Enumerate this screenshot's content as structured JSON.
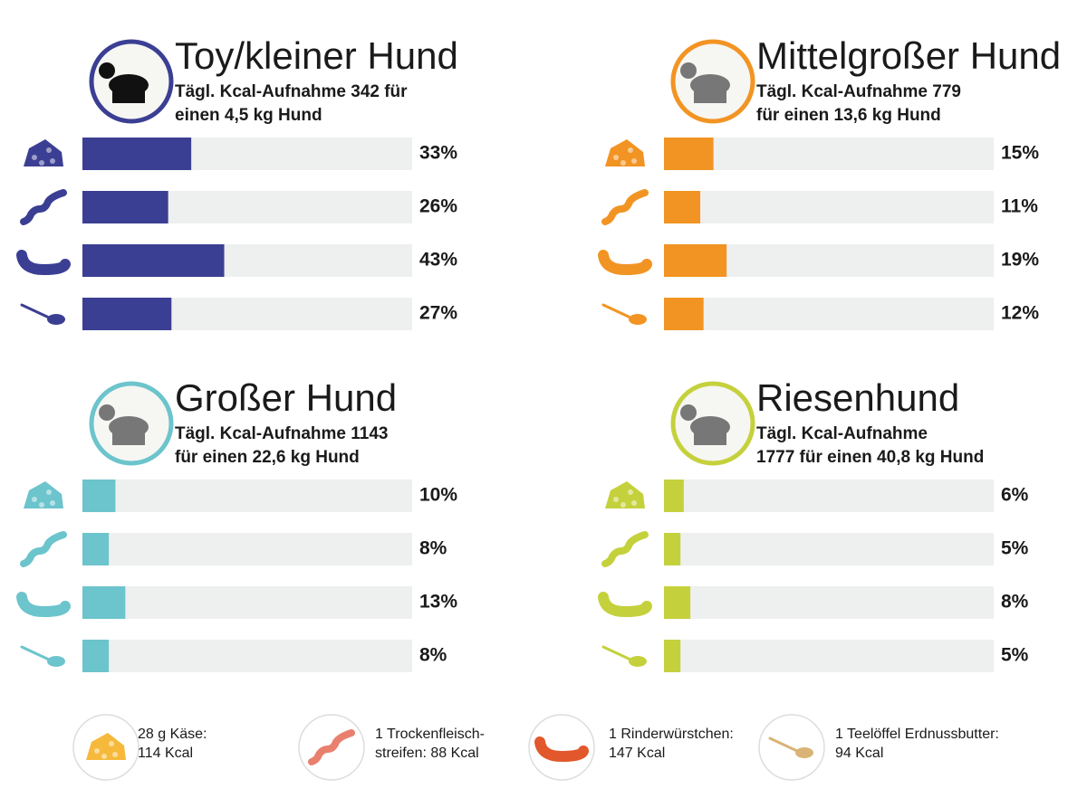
{
  "chart_data": [
    {
      "type": "bar",
      "title": "Toy/kleiner Hund",
      "subtitle": [
        "Tägl. Kcal-Aufnahme 342 für",
        "einen 4,5 kg Hund"
      ],
      "categories": [
        null,
        null,
        null,
        null
      ],
      "values": [
        33,
        26,
        43,
        27
      ],
      "value_labels": [
        "33%",
        "26%",
        "43%",
        "27%"
      ],
      "color": "#3b3f93",
      "xlim": [
        0,
        100
      ]
    },
    {
      "type": "bar",
      "title": "Mittelgroßer Hund",
      "subtitle": [
        "Tägl. Kcal-Aufnahme 779",
        "für einen 13,6 kg Hund"
      ],
      "categories": [
        null,
        null,
        null,
        null
      ],
      "values": [
        15,
        11,
        19,
        12
      ],
      "value_labels": [
        "15%",
        "11%",
        "19%",
        "12%"
      ],
      "color": "#f29423",
      "xlim": [
        0,
        100
      ]
    },
    {
      "type": "bar",
      "title": "Großer Hund",
      "subtitle": [
        "Tägl. Kcal-Aufnahme 1143",
        "für einen 22,6 kg Hund"
      ],
      "categories": [
        null,
        null,
        null,
        null
      ],
      "values": [
        10,
        8,
        13,
        8
      ],
      "value_labels": [
        "10%",
        "8%",
        "13%",
        "8%"
      ],
      "color": "#6cc4cc",
      "xlim": [
        0,
        100
      ]
    },
    {
      "type": "bar",
      "title": "Riesenhund",
      "subtitle": [
        "Tägl. Kcal-Aufnahme",
        "1777 für einen 40,8 kg Hund"
      ],
      "categories": [
        null,
        null,
        null,
        null
      ],
      "values": [
        6,
        5,
        8,
        5
      ],
      "value_labels": [
        "6%",
        "5%",
        "8%",
        "5%"
      ],
      "color": "#c5d13c",
      "xlim": [
        0,
        100
      ]
    }
  ],
  "legend": [
    {
      "lines": [
        "28 g Käse:",
        "114 Kcal"
      ]
    },
    {
      "lines": [
        "1 Trockenfleisch-",
        "streifen: 88 Kcal"
      ]
    },
    {
      "lines": [
        "1 Rinderwürstchen:",
        "147 Kcal"
      ]
    },
    {
      "lines": [
        "1 Teelöffel Erdnussbutter:",
        "94 Kcal"
      ]
    }
  ]
}
